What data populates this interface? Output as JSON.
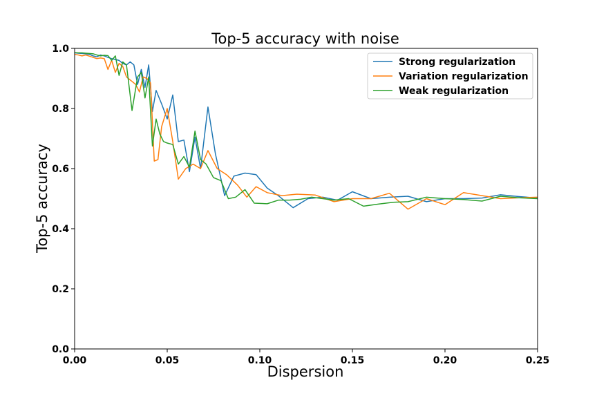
{
  "chart_data": {
    "type": "line",
    "title": "Top-5 accuracy with noise",
    "xlabel": "Dispersion",
    "ylabel": "Top-5 accuracy",
    "xlim": [
      0.0,
      0.25
    ],
    "ylim": [
      0.0,
      1.0
    ],
    "xticks": [
      "0.00",
      "0.05",
      "0.10",
      "0.15",
      "0.20",
      "0.25"
    ],
    "yticks": [
      "0.0",
      "0.2",
      "0.4",
      "0.6",
      "0.8",
      "1.0"
    ],
    "grid": false,
    "legend_position": "top-right",
    "series": [
      {
        "name": "Strong regularization",
        "color": "#1f77b4",
        "x": [
          0.0,
          0.002,
          0.004,
          0.006,
          0.008,
          0.01,
          0.012,
          0.014,
          0.016,
          0.018,
          0.02,
          0.022,
          0.024,
          0.026,
          0.028,
          0.03,
          0.032,
          0.034,
          0.036,
          0.038,
          0.04,
          0.042,
          0.044,
          0.047,
          0.05,
          0.053,
          0.056,
          0.059,
          0.062,
          0.065,
          0.068,
          0.072,
          0.076,
          0.081,
          0.086,
          0.092,
          0.098,
          0.104,
          0.11,
          0.118,
          0.126,
          0.134,
          0.142,
          0.15,
          0.16,
          0.17,
          0.18,
          0.19,
          0.2,
          0.21,
          0.22,
          0.23,
          0.24,
          0.25
        ],
        "y": [
          0.985,
          0.984,
          0.983,
          0.982,
          0.98,
          0.975,
          0.972,
          0.978,
          0.975,
          0.97,
          0.966,
          0.963,
          0.96,
          0.95,
          0.945,
          0.955,
          0.945,
          0.88,
          0.93,
          0.87,
          0.945,
          0.79,
          0.86,
          0.815,
          0.765,
          0.845,
          0.69,
          0.695,
          0.59,
          0.705,
          0.6,
          0.805,
          0.65,
          0.51,
          0.575,
          0.585,
          0.58,
          0.535,
          0.51,
          0.47,
          0.5,
          0.505,
          0.495,
          0.523,
          0.5,
          0.505,
          0.508,
          0.49,
          0.5,
          0.5,
          0.502,
          0.513,
          0.507,
          0.502
        ]
      },
      {
        "name": "Variation regularization",
        "color": "#ff7f0e",
        "x": [
          0.0,
          0.002,
          0.004,
          0.006,
          0.008,
          0.01,
          0.012,
          0.014,
          0.016,
          0.018,
          0.02,
          0.022,
          0.024,
          0.026,
          0.028,
          0.03,
          0.033,
          0.035,
          0.037,
          0.039,
          0.041,
          0.043,
          0.045,
          0.047,
          0.05,
          0.053,
          0.056,
          0.06,
          0.064,
          0.068,
          0.072,
          0.077,
          0.082,
          0.088,
          0.093,
          0.098,
          0.104,
          0.112,
          0.12,
          0.13,
          0.14,
          0.15,
          0.16,
          0.17,
          0.18,
          0.19,
          0.2,
          0.21,
          0.22,
          0.23,
          0.24,
          0.25
        ],
        "y": [
          0.98,
          0.978,
          0.975,
          0.978,
          0.974,
          0.97,
          0.966,
          0.968,
          0.966,
          0.93,
          0.96,
          0.92,
          0.95,
          0.94,
          0.905,
          0.895,
          0.88,
          0.855,
          0.905,
          0.9,
          0.885,
          0.625,
          0.63,
          0.74,
          0.8,
          0.69,
          0.565,
          0.6,
          0.615,
          0.6,
          0.66,
          0.6,
          0.58,
          0.545,
          0.505,
          0.54,
          0.52,
          0.51,
          0.515,
          0.512,
          0.49,
          0.5,
          0.5,
          0.518,
          0.465,
          0.5,
          0.48,
          0.52,
          0.51,
          0.5,
          0.503,
          0.505
        ]
      },
      {
        "name": "Weak regularization",
        "color": "#2ca02c",
        "x": [
          0.0,
          0.002,
          0.004,
          0.006,
          0.008,
          0.01,
          0.012,
          0.014,
          0.016,
          0.018,
          0.02,
          0.022,
          0.024,
          0.026,
          0.028,
          0.031,
          0.034,
          0.036,
          0.038,
          0.04,
          0.042,
          0.044,
          0.046,
          0.048,
          0.05,
          0.053,
          0.056,
          0.059,
          0.062,
          0.065,
          0.068,
          0.071,
          0.075,
          0.079,
          0.083,
          0.087,
          0.092,
          0.097,
          0.104,
          0.11,
          0.116,
          0.122,
          0.128,
          0.134,
          0.14,
          0.148,
          0.156,
          0.164,
          0.172,
          0.18,
          0.19,
          0.2,
          0.21,
          0.22,
          0.23,
          0.24,
          0.25
        ],
        "y": [
          0.986,
          0.985,
          0.985,
          0.984,
          0.983,
          0.982,
          0.978,
          0.975,
          0.977,
          0.976,
          0.96,
          0.975,
          0.91,
          0.955,
          0.945,
          0.793,
          0.905,
          0.92,
          0.835,
          0.905,
          0.675,
          0.765,
          0.715,
          0.69,
          0.685,
          0.68,
          0.615,
          0.64,
          0.605,
          0.725,
          0.63,
          0.615,
          0.57,
          0.56,
          0.5,
          0.505,
          0.53,
          0.485,
          0.483,
          0.495,
          0.495,
          0.498,
          0.505,
          0.5,
          0.495,
          0.5,
          0.475,
          0.482,
          0.488,
          0.49,
          0.505,
          0.5,
          0.497,
          0.492,
          0.508,
          0.503,
          0.5
        ]
      }
    ]
  }
}
